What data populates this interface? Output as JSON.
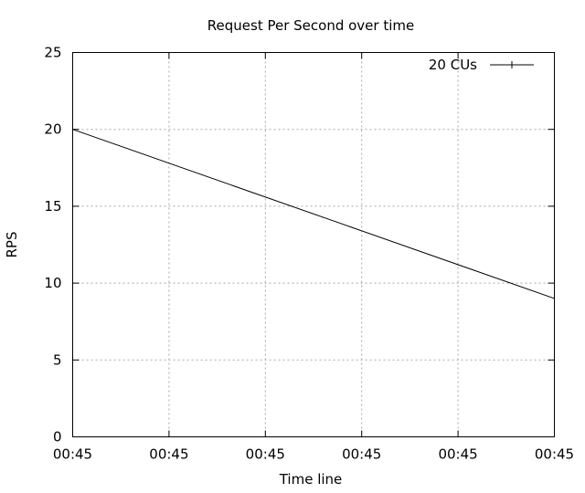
{
  "chart_data": {
    "type": "line",
    "title": "Request Per Second over time",
    "xlabel": "Time line",
    "ylabel": "RPS",
    "ylim": [
      0,
      25
    ],
    "xlim": [
      0,
      5
    ],
    "yticks": [
      0,
      5,
      10,
      15,
      20,
      25
    ],
    "yticklabels": [
      "0",
      "5",
      "10",
      "15",
      "20",
      "25"
    ],
    "xticks": [
      0,
      1,
      2,
      3,
      4,
      5
    ],
    "xticklabels": [
      "00:45",
      "00:45",
      "00:45",
      "00:45",
      "00:45",
      "00:45"
    ],
    "grid": true,
    "legend_position": "top-right",
    "series": [
      {
        "name": "20 CUs",
        "color": "#000000",
        "x": [
          0,
          5
        ],
        "y": [
          20,
          9
        ]
      }
    ]
  }
}
